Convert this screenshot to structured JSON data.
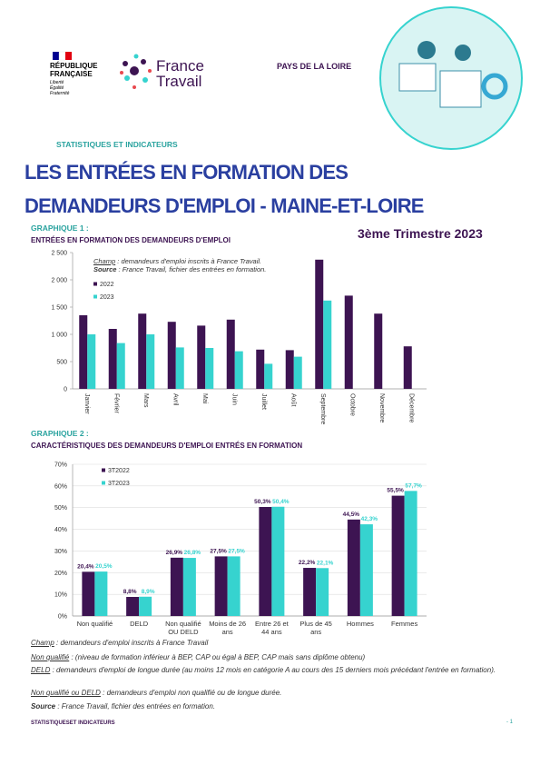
{
  "header": {
    "republic": "RÉPUBLIQUE FRANÇAISE",
    "motto": "Liberté Égalité Fraternité",
    "brand": "France Travail",
    "region": "PAYS DE LA LOIRE",
    "section": "STATISTIQUES ET INDICATEURS",
    "title_line1": "LES ENTRÉES EN FORMATION DES",
    "title_line2": "DEMANDEURS D'EMPLOI - MAINE-ET-LOIRE",
    "period": "3ème Trimestre 2023"
  },
  "chart_data": [
    {
      "type": "bar",
      "title": "GRAPHIQUE 1 :",
      "subtitle": "ENTRÉES EN FORMATION DES DEMANDEURS D'EMPLOI",
      "annotations": [
        {
          "label": "Champ",
          "text": " : demandeurs d'emploi inscrits à France Travail."
        },
        {
          "label": "Source",
          "text": " : France Travail, fichier des entrées en formation."
        }
      ],
      "categories": [
        "Janvier",
        "Février",
        "Mars",
        "Avril",
        "Mai",
        "Juin",
        "Juillet",
        "Août",
        "Septembre",
        "Octobre",
        "Novembre",
        "Décembre"
      ],
      "series": [
        {
          "name": "2022",
          "color": "#3d1452",
          "values": [
            1350,
            1100,
            1380,
            1230,
            1160,
            1270,
            720,
            710,
            2370,
            1710,
            1380,
            780
          ]
        },
        {
          "name": "2023",
          "color": "#36d3cf",
          "values": [
            1000,
            840,
            1000,
            760,
            750,
            690,
            460,
            590,
            1620,
            null,
            null,
            null
          ]
        }
      ],
      "ylim": [
        0,
        2500
      ],
      "yticks": [
        0,
        500,
        {
          "value": 1000,
          "label": "1 000"
        },
        {
          "value": 1500,
          "label": "1 500"
        },
        {
          "value": 2000,
          "label": "2 000"
        },
        {
          "value": 2500,
          "label": "2 500"
        }
      ],
      "grid": false,
      "legend": "upper left"
    },
    {
      "type": "bar",
      "title": "GRAPHIQUE 2 :",
      "subtitle": "CARACTÉRISTIQUES DES DEMANDEURS D'EMPLOI ENTRÉS EN FORMATION",
      "categories": [
        "Non qualifié",
        "DELD",
        "Non qualifié OU DELD",
        "Moins de 26 ans",
        "Entre 26 et 44 ans",
        "Plus de 45 ans",
        "Hommes",
        "Femmes"
      ],
      "series": [
        {
          "name": "3T2022",
          "color": "#3d1452",
          "values": [
            20.4,
            8.8,
            26.9,
            27.5,
            50.3,
            22.2,
            44.5,
            55.5
          ],
          "value_labels": [
            "20,4%",
            "8,8%",
            "26,9%",
            "27,5%",
            "50,3%",
            "22,2%",
            "44,5%",
            "55,5%"
          ]
        },
        {
          "name": "3T2023",
          "color": "#36d3cf",
          "values": [
            20.5,
            8.9,
            26.8,
            27.5,
            50.4,
            22.1,
            42.3,
            57.7
          ],
          "value_labels": [
            "20,5%",
            "8,9%",
            "26,8%",
            "27,5%",
            "50,4%",
            "22,1%",
            "42,3%",
            "57,7%"
          ]
        }
      ],
      "ylim": [
        0,
        70
      ],
      "yticks": [
        {
          "value": 0,
          "label": "0%"
        },
        {
          "value": 10,
          "label": "10%"
        },
        {
          "value": 20,
          "label": "20%"
        },
        {
          "value": 30,
          "label": "30%"
        },
        {
          "value": 40,
          "label": "40%"
        },
        {
          "value": 50,
          "label": "50%"
        },
        {
          "value": 60,
          "label": "60%"
        },
        {
          "value": 70,
          "label": "70%"
        }
      ],
      "grid": true,
      "legend": "upper left"
    }
  ],
  "notes": [
    {
      "term": "Champ",
      "text": " : demandeurs d'emploi inscrits à France Travail"
    },
    {
      "term": "Non qualifié",
      "text": " : (niveau de formation inférieur à BEP, CAP ou égal à BEP, CAP mais sans diplôme obtenu)"
    },
    {
      "term": "DELD",
      "text": " : demandeurs d'emploi de longue durée (au moins 12 mois en catégorie A au cours des 15 derniers mois précédant l'entrée en formation)."
    },
    {
      "term": "Non qualifié ou DELD",
      "text": " : demandeurs d'emploi non qualifié ou de longue durée."
    },
    {
      "term": "Source",
      "text": " : France Travail, fichier des entrées en formation."
    }
  ],
  "footer": {
    "left": "STATISTIQUESET INDICATEURS",
    "page": "- 1"
  }
}
